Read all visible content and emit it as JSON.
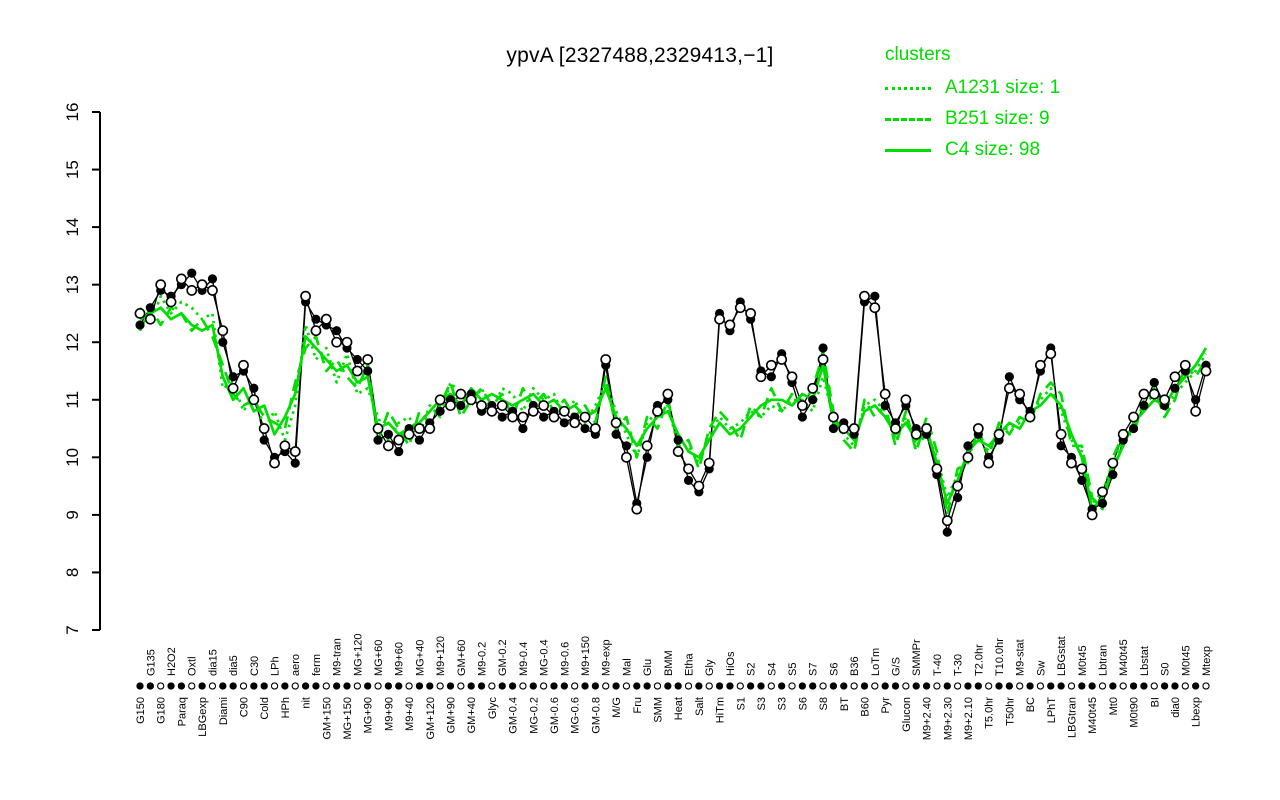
{
  "title": "ypvA [2327488,2329413,−1]",
  "colors": {
    "cluster_green": "#00DD00",
    "series_black": "#000000"
  },
  "legend": {
    "title": "clusters",
    "items": [
      {
        "label": "A1231 size: 1",
        "line": "dotted"
      },
      {
        "label": "B251 size: 9",
        "line": "dashed"
      },
      {
        "label": "C4 size: 98",
        "line": "solid"
      }
    ]
  },
  "chart_data": {
    "type": "line",
    "title": "ypvA [2327488,2329413,−1]",
    "xlabel": "",
    "ylabel": "",
    "ylim": [
      7,
      16
    ],
    "yticks": [
      7,
      8,
      9,
      10,
      11,
      12,
      13,
      14,
      15,
      16
    ],
    "grid": false,
    "legend_position": "top-right",
    "axis_marker_pattern": "ffoffofo",
    "categories": [
      "G150",
      "G135",
      "G180",
      "H2O2",
      "Paraq",
      "Oxtl",
      "LBGexp",
      "dia15",
      "Diami",
      "dia5",
      "C90",
      "C30",
      "Cold",
      "LPh",
      "HPh",
      "aero",
      "nit",
      "ferm",
      "GM+150",
      "M9-tran",
      "MG+150",
      "MG+120",
      "MG+90",
      "MG+60",
      "M9+90",
      "M9+60",
      "M9+40",
      "MG+40",
      "GM+120",
      "M9+120",
      "GM+90",
      "GM+60",
      "GM+40",
      "M9-0.2",
      "Glyc",
      "GM-0.2",
      "GM-0.4",
      "M9-0.4",
      "MG-0.2",
      "MG-0.4",
      "GM-0.6",
      "M9-0.6",
      "MG-0.6",
      "M9+150",
      "GM-0.8",
      "M9-exp",
      "M/G",
      "Mal",
      "Fru",
      "Glu",
      "SMM",
      "BMM",
      "Heat",
      "Etha",
      "Salt",
      "Gly",
      "HiTm",
      "HiOs",
      "S1",
      "S2",
      "S3",
      "S4",
      "S3",
      "S5",
      "S6",
      "S7",
      "S8",
      "S6",
      "BT",
      "B36",
      "B60",
      "LoTm",
      "Pyr",
      "G/S",
      "Glucon",
      "SMMPr",
      "M9+2.40",
      "T-40",
      "M9+2.30",
      "T-30",
      "M9+2.10",
      "T2.0hr",
      "T5.0hr",
      "T10.0hr",
      "T50hr",
      "M9-stat",
      "BC",
      "Sw",
      "LPhT",
      "LBGstat",
      "LBGtran",
      "M0t45",
      "M40t45",
      "Lbtran",
      "Mt0",
      "M40t45",
      "M0t90",
      "Lbstat",
      "BI",
      "S0",
      "dia0",
      "M0t45",
      "Lbexp",
      "Mtexp"
    ],
    "series": [
      {
        "name": "gene-probe-1",
        "role": "gene",
        "marker": "filled",
        "color": "#000000",
        "values": [
          12.3,
          12.6,
          12.9,
          12.8,
          13.0,
          13.2,
          12.9,
          13.1,
          12.0,
          11.4,
          11.5,
          11.2,
          10.3,
          10.0,
          10.1,
          9.9,
          12.7,
          12.4,
          12.3,
          12.2,
          11.9,
          11.7,
          11.5,
          10.3,
          10.4,
          10.1,
          10.5,
          10.3,
          10.6,
          10.8,
          11.0,
          10.9,
          11.1,
          10.8,
          10.9,
          10.7,
          10.8,
          10.5,
          10.9,
          10.7,
          10.8,
          10.6,
          10.7,
          10.5,
          10.4,
          11.6,
          10.4,
          10.2,
          9.2,
          10.0,
          10.9,
          11.0,
          10.3,
          9.6,
          9.4,
          9.8,
          12.5,
          12.2,
          12.7,
          12.4,
          11.5,
          11.4,
          11.8,
          11.3,
          10.7,
          11.0,
          11.9,
          10.5,
          10.6,
          10.4,
          12.7,
          12.8,
          10.9,
          10.6,
          10.9,
          10.5,
          10.4,
          9.7,
          8.7,
          9.3,
          10.2,
          10.4,
          10.0,
          10.3,
          11.4,
          11.0,
          10.8,
          11.5,
          11.9,
          10.2,
          10.0,
          9.6,
          9.1,
          9.2,
          9.7,
          10.3,
          10.5,
          10.9,
          11.3,
          10.9,
          11.2,
          11.5,
          11.0,
          11.6
        ]
      },
      {
        "name": "gene-probe-2",
        "role": "gene",
        "marker": "open",
        "color": "#000000",
        "values": [
          12.5,
          12.4,
          13.0,
          12.7,
          13.1,
          12.9,
          13.0,
          12.9,
          12.2,
          11.2,
          11.6,
          11.0,
          10.5,
          9.9,
          10.2,
          10.1,
          12.8,
          12.2,
          12.4,
          12.0,
          12.0,
          11.5,
          11.7,
          10.5,
          10.2,
          10.3,
          10.4,
          10.5,
          10.5,
          11.0,
          10.9,
          11.1,
          11.0,
          10.9,
          10.8,
          10.9,
          10.7,
          10.7,
          10.8,
          10.9,
          10.7,
          10.8,
          10.6,
          10.7,
          10.5,
          11.7,
          10.6,
          10.0,
          9.1,
          10.2,
          10.8,
          11.1,
          10.1,
          9.8,
          9.5,
          9.9,
          12.4,
          12.3,
          12.6,
          12.5,
          11.4,
          11.6,
          11.7,
          11.4,
          10.9,
          11.2,
          11.7,
          10.7,
          10.5,
          10.5,
          12.8,
          12.6,
          11.1,
          10.5,
          11.0,
          10.4,
          10.5,
          9.8,
          8.9,
          9.5,
          10.0,
          10.5,
          9.9,
          10.4,
          11.2,
          11.1,
          10.7,
          11.6,
          11.8,
          10.4,
          9.9,
          9.8,
          9.0,
          9.4,
          9.9,
          10.4,
          10.7,
          11.1,
          11.1,
          11.0,
          11.4,
          11.6,
          10.8,
          11.5
        ]
      },
      {
        "name": "A1231",
        "size": 1,
        "role": "cluster",
        "line": "dotted",
        "color": "#00DD00",
        "values": [
          12.6,
          12.3,
          12.8,
          12.5,
          12.7,
          12.6,
          12.4,
          12.5,
          11.2,
          11.3,
          10.8,
          11.1,
          10.5,
          10.8,
          10.3,
          10.9,
          12.3,
          11.7,
          11.9,
          11.3,
          11.8,
          11.1,
          11.2,
          10.7,
          10.3,
          10.6,
          10.7,
          10.4,
          10.9,
          10.7,
          11.3,
          11.1,
          10.9,
          11.2,
          10.8,
          11.2,
          11.1,
          10.8,
          11.2,
          11.0,
          11.1,
          10.7,
          11.0,
          10.6,
          10.9,
          11.3,
          10.8,
          10.4,
          10.0,
          10.6,
          10.8,
          10.9,
          10.2,
          10.2,
          9.9,
          10.4,
          10.7,
          10.5,
          10.6,
          10.8,
          10.7,
          10.9,
          10.8,
          11.0,
          11.0,
          10.8,
          11.4,
          10.7,
          10.4,
          10.2,
          10.9,
          11.0,
          10.8,
          10.3,
          10.7,
          10.2,
          10.4,
          10.0,
          9.3,
          9.7,
          10.0,
          10.4,
          10.1,
          10.5,
          10.5,
          10.6,
          10.7,
          11.0,
          11.2,
          10.8,
          10.3,
          10.1,
          9.2,
          9.4,
          9.9,
          10.3,
          10.5,
          10.9,
          11.1,
          10.8,
          11.1,
          11.3,
          11.5,
          11.8
        ]
      },
      {
        "name": "B251",
        "size": 9,
        "role": "cluster",
        "line": "dashed",
        "color": "#00DD00",
        "values": [
          12.2,
          12.6,
          12.3,
          12.6,
          12.5,
          12.2,
          12.4,
          12.1,
          11.6,
          11.1,
          10.9,
          11.0,
          10.7,
          10.6,
          10.5,
          11.3,
          11.9,
          12.1,
          11.5,
          11.7,
          11.4,
          11.2,
          11.6,
          10.3,
          10.8,
          10.5,
          10.2,
          10.8,
          10.6,
          10.9,
          11.3,
          10.7,
          11.0,
          11.2,
          10.9,
          11.1,
          10.7,
          11.2,
          10.9,
          11.1,
          10.8,
          11.0,
          10.7,
          10.9,
          10.6,
          11.4,
          10.5,
          10.7,
          10.0,
          10.7,
          10.5,
          11.0,
          10.2,
          10.3,
          9.8,
          10.5,
          10.8,
          10.6,
          10.3,
          10.9,
          10.7,
          11.2,
          10.8,
          11.1,
          10.9,
          11.2,
          11.8,
          10.8,
          10.3,
          10.1,
          11.0,
          10.7,
          10.9,
          10.2,
          10.8,
          10.1,
          10.7,
          10.1,
          9.0,
          9.8,
          9.9,
          10.5,
          10.0,
          10.6,
          10.4,
          10.7,
          10.6,
          11.1,
          11.3,
          11.1,
          10.2,
          10.2,
          9.3,
          9.1,
          10.0,
          10.4,
          10.4,
          11.0,
          11.2,
          10.7,
          11.0,
          11.6,
          11.4,
          11.7
        ]
      },
      {
        "name": "C4",
        "size": 98,
        "role": "cluster",
        "line": "solid",
        "color": "#00DD00",
        "values": [
          12.4,
          12.5,
          12.6,
          12.4,
          12.5,
          12.3,
          12.2,
          12.3,
          11.4,
          11.0,
          11.2,
          10.8,
          10.9,
          10.4,
          10.7,
          11.1,
          12.1,
          11.9,
          11.7,
          11.5,
          11.6,
          11.3,
          11.4,
          10.5,
          10.6,
          10.4,
          10.5,
          10.6,
          10.8,
          11.0,
          11.1,
          10.9,
          11.2,
          11.0,
          11.1,
          11.0,
          10.9,
          11.0,
          11.1,
          10.9,
          11.0,
          10.8,
          10.9,
          10.7,
          10.8,
          11.2,
          10.7,
          10.5,
          10.2,
          10.5,
          10.7,
          10.8,
          10.4,
          10.1,
          10.0,
          10.3,
          10.6,
          10.4,
          10.5,
          10.7,
          10.9,
          11.0,
          11.0,
          10.9,
          11.1,
          11.0,
          11.6,
          10.6,
          10.5,
          10.3,
          10.8,
          10.9,
          10.7,
          10.4,
          10.6,
          10.3,
          10.5,
          9.9,
          9.2,
          9.6,
          10.1,
          10.3,
          10.2,
          10.4,
          10.6,
          10.5,
          10.8,
          10.9,
          11.1,
          10.9,
          10.4,
          10.0,
          9.1,
          9.3,
          9.8,
          10.2,
          10.6,
          10.8,
          11.0,
          10.9,
          11.2,
          11.4,
          11.6,
          11.9
        ]
      }
    ]
  }
}
